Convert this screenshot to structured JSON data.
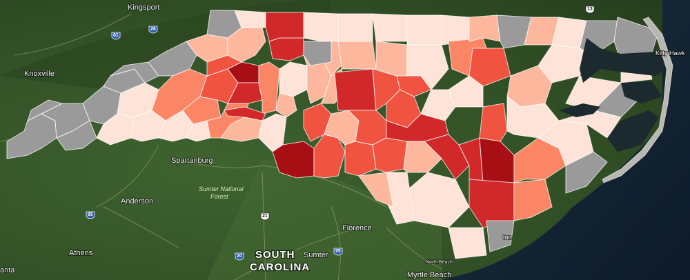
{
  "places": [
    {
      "name": "Kingsport",
      "type": "city"
    },
    {
      "name": "Knoxville",
      "type": "city"
    },
    {
      "name": "Spartanburg",
      "type": "city"
    },
    {
      "name": "Anderson",
      "type": "city"
    },
    {
      "name": "Athens",
      "type": "city"
    },
    {
      "name": "Florence",
      "type": "city"
    },
    {
      "name": "Sumter",
      "type": "city"
    },
    {
      "name": "Myrtle Beach",
      "type": "city"
    },
    {
      "name": "North Beach",
      "type": "city"
    },
    {
      "name": "Kitty Hawk",
      "type": "city"
    },
    {
      "name": "anta",
      "type": "city-partial"
    },
    {
      "name": "ton",
      "type": "city-partial"
    }
  ],
  "state_label": {
    "line1": "SOUTH",
    "line2": "CAROLINA"
  },
  "forest_label": {
    "line1": "Sumter National",
    "line2": "Forest"
  },
  "highway_shields": [
    "81",
    "26",
    "85",
    "21",
    "20",
    "95",
    "13"
  ],
  "colors": {
    "no_data": "#9a9a9a",
    "scale": [
      "#fde3d8",
      "#fcb79c",
      "#fb8666",
      "#f0533f",
      "#d1292a",
      "#a80f15"
    ],
    "water": "#1c2a2f",
    "land": "#3b5a2a"
  },
  "counties": [
    {
      "id": "c01",
      "level": -1
    },
    {
      "id": "c02",
      "level": -1
    },
    {
      "id": "c03",
      "level": -1
    },
    {
      "id": "c04",
      "level": -1
    },
    {
      "id": "c05",
      "level": -1
    },
    {
      "id": "c06",
      "level": 0
    },
    {
      "id": "c07",
      "level": 0
    },
    {
      "id": "c08",
      "level": -1
    },
    {
      "id": "c09",
      "level": 0
    },
    {
      "id": "c10",
      "level": -1
    },
    {
      "id": "c11",
      "level": 0
    },
    {
      "id": "c12",
      "level": 2
    },
    {
      "id": "c13",
      "level": -1
    },
    {
      "id": "c14",
      "level": 0
    },
    {
      "id": "c15",
      "level": 2
    },
    {
      "id": "c16",
      "level": 3
    },
    {
      "id": "c17",
      "level": 1
    },
    {
      "id": "c18",
      "level": 5
    },
    {
      "id": "c19",
      "level": 4
    },
    {
      "id": "c20",
      "level": 3
    },
    {
      "id": "c21",
      "level": 2
    },
    {
      "id": "c22",
      "level": 1
    },
    {
      "id": "c23",
      "level": 1
    },
    {
      "id": "c24",
      "level": 2
    },
    {
      "id": "c25",
      "level": 4
    },
    {
      "id": "c26",
      "level": 0
    },
    {
      "id": "c27",
      "level": 5
    },
    {
      "id": "c28",
      "level": 4
    },
    {
      "id": "c29",
      "level": -1
    },
    {
      "id": "c30",
      "level": 0
    },
    {
      "id": "c31",
      "level": 0
    },
    {
      "id": "c32",
      "level": 1
    },
    {
      "id": "c33",
      "level": 4
    },
    {
      "id": "c34",
      "level": 3
    },
    {
      "id": "c35",
      "level": 1
    },
    {
      "id": "c36",
      "level": 3
    },
    {
      "id": "c37",
      "level": 1
    },
    {
      "id": "c38",
      "level": 0
    },
    {
      "id": "c39",
      "level": 1
    },
    {
      "id": "c40",
      "level": 1
    },
    {
      "id": "c41",
      "level": 1
    },
    {
      "id": "c42",
      "level": -1
    },
    {
      "id": "c43",
      "level": 3
    },
    {
      "id": "c44",
      "level": 0
    },
    {
      "id": "c45",
      "level": 0
    },
    {
      "id": "c46",
      "level": 4
    },
    {
      "id": "c47",
      "level": 3
    },
    {
      "id": "c48",
      "level": 0
    },
    {
      "id": "c49",
      "level": 3
    },
    {
      "id": "c50",
      "level": 3
    },
    {
      "id": "c51",
      "level": 3
    },
    {
      "id": "c52",
      "level": 4
    },
    {
      "id": "c53",
      "level": 3
    },
    {
      "id": "c54",
      "level": 1
    },
    {
      "id": "c55",
      "level": 4
    },
    {
      "id": "c56",
      "level": 1
    },
    {
      "id": "c57",
      "level": 0
    },
    {
      "id": "c58",
      "level": 4
    },
    {
      "id": "c59",
      "level": 5
    },
    {
      "id": "c60",
      "level": 3
    },
    {
      "id": "c61",
      "level": 0
    },
    {
      "id": "c62",
      "level": 0
    },
    {
      "id": "c63",
      "level": 2
    },
    {
      "id": "c64",
      "level": 3
    },
    {
      "id": "c65",
      "level": 1
    },
    {
      "id": "c66",
      "level": 0
    },
    {
      "id": "c67",
      "level": -1
    },
    {
      "id": "c68",
      "level": 1
    },
    {
      "id": "c69",
      "level": 0
    },
    {
      "id": "c70",
      "level": -1
    },
    {
      "id": "c71",
      "level": -1
    },
    {
      "id": "c72",
      "level": 1
    },
    {
      "id": "c73",
      "level": 0
    },
    {
      "id": "c74",
      "level": -1
    },
    {
      "id": "c75",
      "level": 0
    },
    {
      "id": "c76",
      "level": 2
    },
    {
      "id": "c77",
      "level": -1
    },
    {
      "id": "c78",
      "level": 0
    }
  ]
}
